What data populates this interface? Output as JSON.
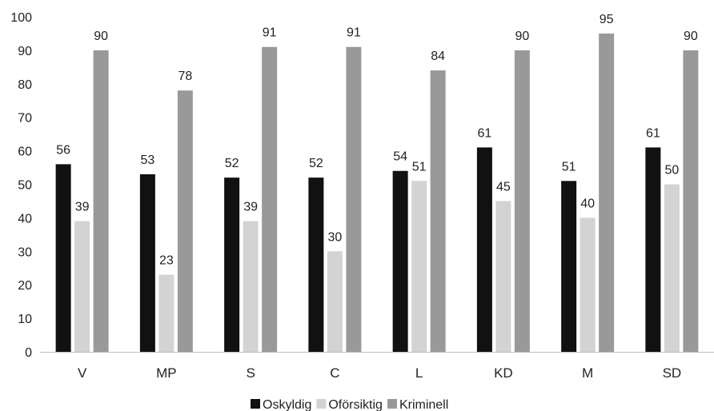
{
  "chart_data": {
    "type": "bar",
    "categories": [
      "V",
      "MP",
      "S",
      "C",
      "L",
      "KD",
      "M",
      "SD"
    ],
    "series": [
      {
        "name": "Oskyldig",
        "color": "#111111",
        "values": [
          56,
          53,
          52,
          52,
          54,
          61,
          51,
          61
        ]
      },
      {
        "name": "Oförsiktig",
        "color": "#d3d3d3",
        "values": [
          39,
          23,
          39,
          30,
          51,
          45,
          40,
          50
        ]
      },
      {
        "name": "Kriminell",
        "color": "#999999",
        "values": [
          90,
          78,
          91,
          91,
          84,
          90,
          95,
          90
        ]
      }
    ],
    "yticks": [
      "0",
      "10",
      "20",
      "30",
      "40",
      "50",
      "60",
      "70",
      "80",
      "90",
      "100"
    ],
    "ylim": [
      0,
      100
    ],
    "grid": false,
    "legend_position": "bottom-center",
    "title": "",
    "xlabel": "",
    "ylabel": ""
  }
}
